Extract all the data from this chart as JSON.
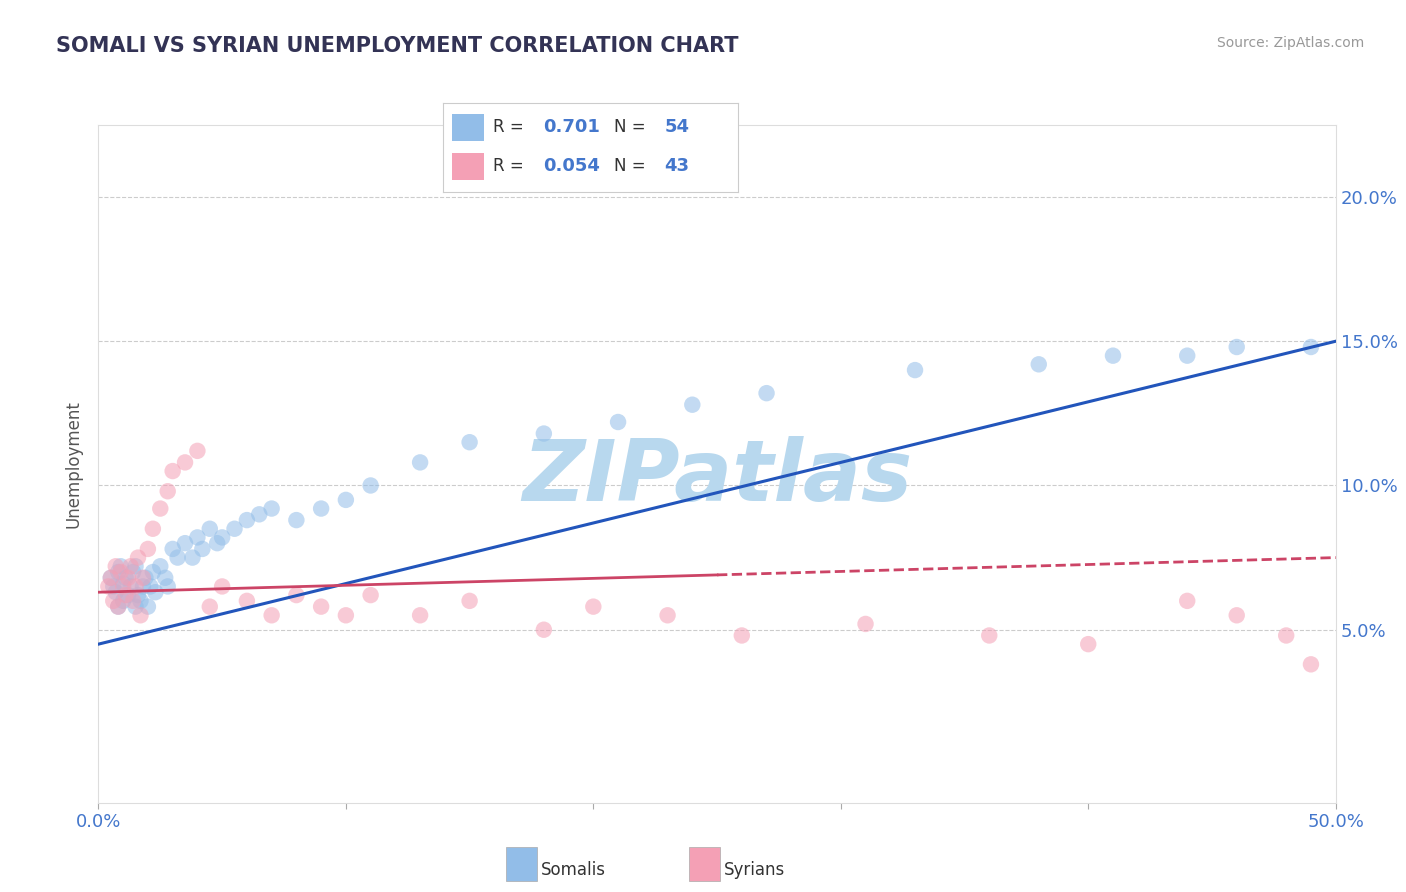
{
  "title": "SOMALI VS SYRIAN UNEMPLOYMENT CORRELATION CHART",
  "source_text": "Source: ZipAtlas.com",
  "ylabel": "Unemployment",
  "xlim": [
    0.0,
    0.5
  ],
  "ylim": [
    -0.01,
    0.225
  ],
  "xtick_positions": [
    0.0,
    0.1,
    0.2,
    0.3,
    0.4,
    0.5
  ],
  "xtick_labels_edge": {
    "0.0": "0.0%",
    "0.5": "50.0%"
  },
  "yticks": [
    0.05,
    0.1,
    0.15,
    0.2
  ],
  "ytick_labels": [
    "5.0%",
    "10.0%",
    "15.0%",
    "20.0%"
  ],
  "somali_R": "0.701",
  "somali_N": "54",
  "syrian_R": "0.054",
  "syrian_N": "43",
  "somali_color": "#92bde8",
  "syrian_color": "#f4a0b5",
  "somali_line_color": "#2255bb",
  "syrian_line_color": "#cc4466",
  "watermark": "ZIPatlas",
  "watermark_color": "#b8d8ee",
  "background_color": "#ffffff",
  "tick_color": "#4477cc",
  "grid_color": "#cccccc",
  "somali_line_y0": 0.045,
  "somali_line_y1": 0.15,
  "syrian_line_y0": 0.063,
  "syrian_line_y1": 0.075,
  "somali_x": [
    0.005,
    0.006,
    0.007,
    0.008,
    0.008,
    0.009,
    0.01,
    0.01,
    0.011,
    0.012,
    0.013,
    0.014,
    0.015,
    0.015,
    0.016,
    0.017,
    0.018,
    0.019,
    0.02,
    0.021,
    0.022,
    0.023,
    0.025,
    0.027,
    0.028,
    0.03,
    0.032,
    0.035,
    0.038,
    0.04,
    0.042,
    0.045,
    0.048,
    0.05,
    0.055,
    0.06,
    0.065,
    0.07,
    0.08,
    0.09,
    0.1,
    0.11,
    0.13,
    0.15,
    0.18,
    0.21,
    0.24,
    0.27,
    0.33,
    0.38,
    0.41,
    0.44,
    0.46,
    0.49
  ],
  "somali_y": [
    0.068,
    0.065,
    0.063,
    0.07,
    0.058,
    0.072,
    0.06,
    0.066,
    0.068,
    0.062,
    0.065,
    0.07,
    0.058,
    0.072,
    0.062,
    0.06,
    0.065,
    0.068,
    0.058,
    0.065,
    0.07,
    0.063,
    0.072,
    0.068,
    0.065,
    0.078,
    0.075,
    0.08,
    0.075,
    0.082,
    0.078,
    0.085,
    0.08,
    0.082,
    0.085,
    0.088,
    0.09,
    0.092,
    0.088,
    0.092,
    0.095,
    0.1,
    0.108,
    0.115,
    0.118,
    0.122,
    0.128,
    0.132,
    0.14,
    0.142,
    0.145,
    0.145,
    0.148,
    0.148
  ],
  "syrian_x": [
    0.004,
    0.005,
    0.006,
    0.007,
    0.008,
    0.009,
    0.01,
    0.011,
    0.012,
    0.013,
    0.014,
    0.015,
    0.016,
    0.017,
    0.018,
    0.02,
    0.022,
    0.025,
    0.028,
    0.03,
    0.035,
    0.04,
    0.045,
    0.05,
    0.06,
    0.07,
    0.08,
    0.09,
    0.1,
    0.11,
    0.13,
    0.15,
    0.18,
    0.2,
    0.23,
    0.26,
    0.31,
    0.36,
    0.4,
    0.44,
    0.46,
    0.48,
    0.49
  ],
  "syrian_y": [
    0.065,
    0.068,
    0.06,
    0.072,
    0.058,
    0.07,
    0.065,
    0.062,
    0.068,
    0.072,
    0.06,
    0.065,
    0.075,
    0.055,
    0.068,
    0.078,
    0.085,
    0.092,
    0.098,
    0.105,
    0.108,
    0.112,
    0.058,
    0.065,
    0.06,
    0.055,
    0.062,
    0.058,
    0.055,
    0.062,
    0.055,
    0.06,
    0.05,
    0.058,
    0.055,
    0.048,
    0.052,
    0.048,
    0.045,
    0.06,
    0.055,
    0.048,
    0.038
  ]
}
